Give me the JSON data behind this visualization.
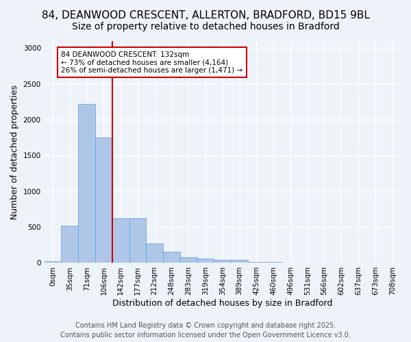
{
  "title_line1": "84, DEANWOOD CRESCENT, ALLERTON, BRADFORD, BD15 9BL",
  "title_line2": "Size of property relative to detached houses in Bradford",
  "xlabel": "Distribution of detached houses by size in Bradford",
  "ylabel": "Number of detached properties",
  "bar_values": [
    20,
    520,
    2220,
    1750,
    630,
    630,
    275,
    155,
    80,
    65,
    45,
    40,
    15,
    10,
    5,
    5,
    2,
    1,
    0,
    0,
    0
  ],
  "categories": [
    "0sqm",
    "35sqm",
    "71sqm",
    "106sqm",
    "142sqm",
    "177sqm",
    "212sqm",
    "248sqm",
    "283sqm",
    "319sqm",
    "354sqm",
    "389sqm",
    "425sqm",
    "460sqm",
    "496sqm",
    "531sqm",
    "566sqm",
    "602sqm",
    "637sqm",
    "673sqm",
    "708sqm"
  ],
  "bar_color": "#aec6e8",
  "bar_edge_color": "#5a9fd4",
  "background_color": "#eef2f9",
  "grid_color": "#ffffff",
  "vline_x": 3.5,
  "vline_color": "#cc0000",
  "annotation_title": "84 DEANWOOD CRESCENT: 132sqm",
  "annotation_line1": "← 73% of detached houses are smaller (4,164)",
  "annotation_line2": "26% of semi-detached houses are larger (1,471) →",
  "annotation_box_color": "#cc0000",
  "ylim": [
    0,
    3100
  ],
  "yticks": [
    0,
    500,
    1000,
    1500,
    2000,
    2500,
    3000
  ],
  "footer_line1": "Contains HM Land Registry data © Crown copyright and database right 2025.",
  "footer_line2": "Contains public sector information licensed under the Open Government Licence v3.0.",
  "title_fontsize": 11,
  "subtitle_fontsize": 10,
  "axis_label_fontsize": 9,
  "tick_fontsize": 7.5,
  "footer_fontsize": 7
}
